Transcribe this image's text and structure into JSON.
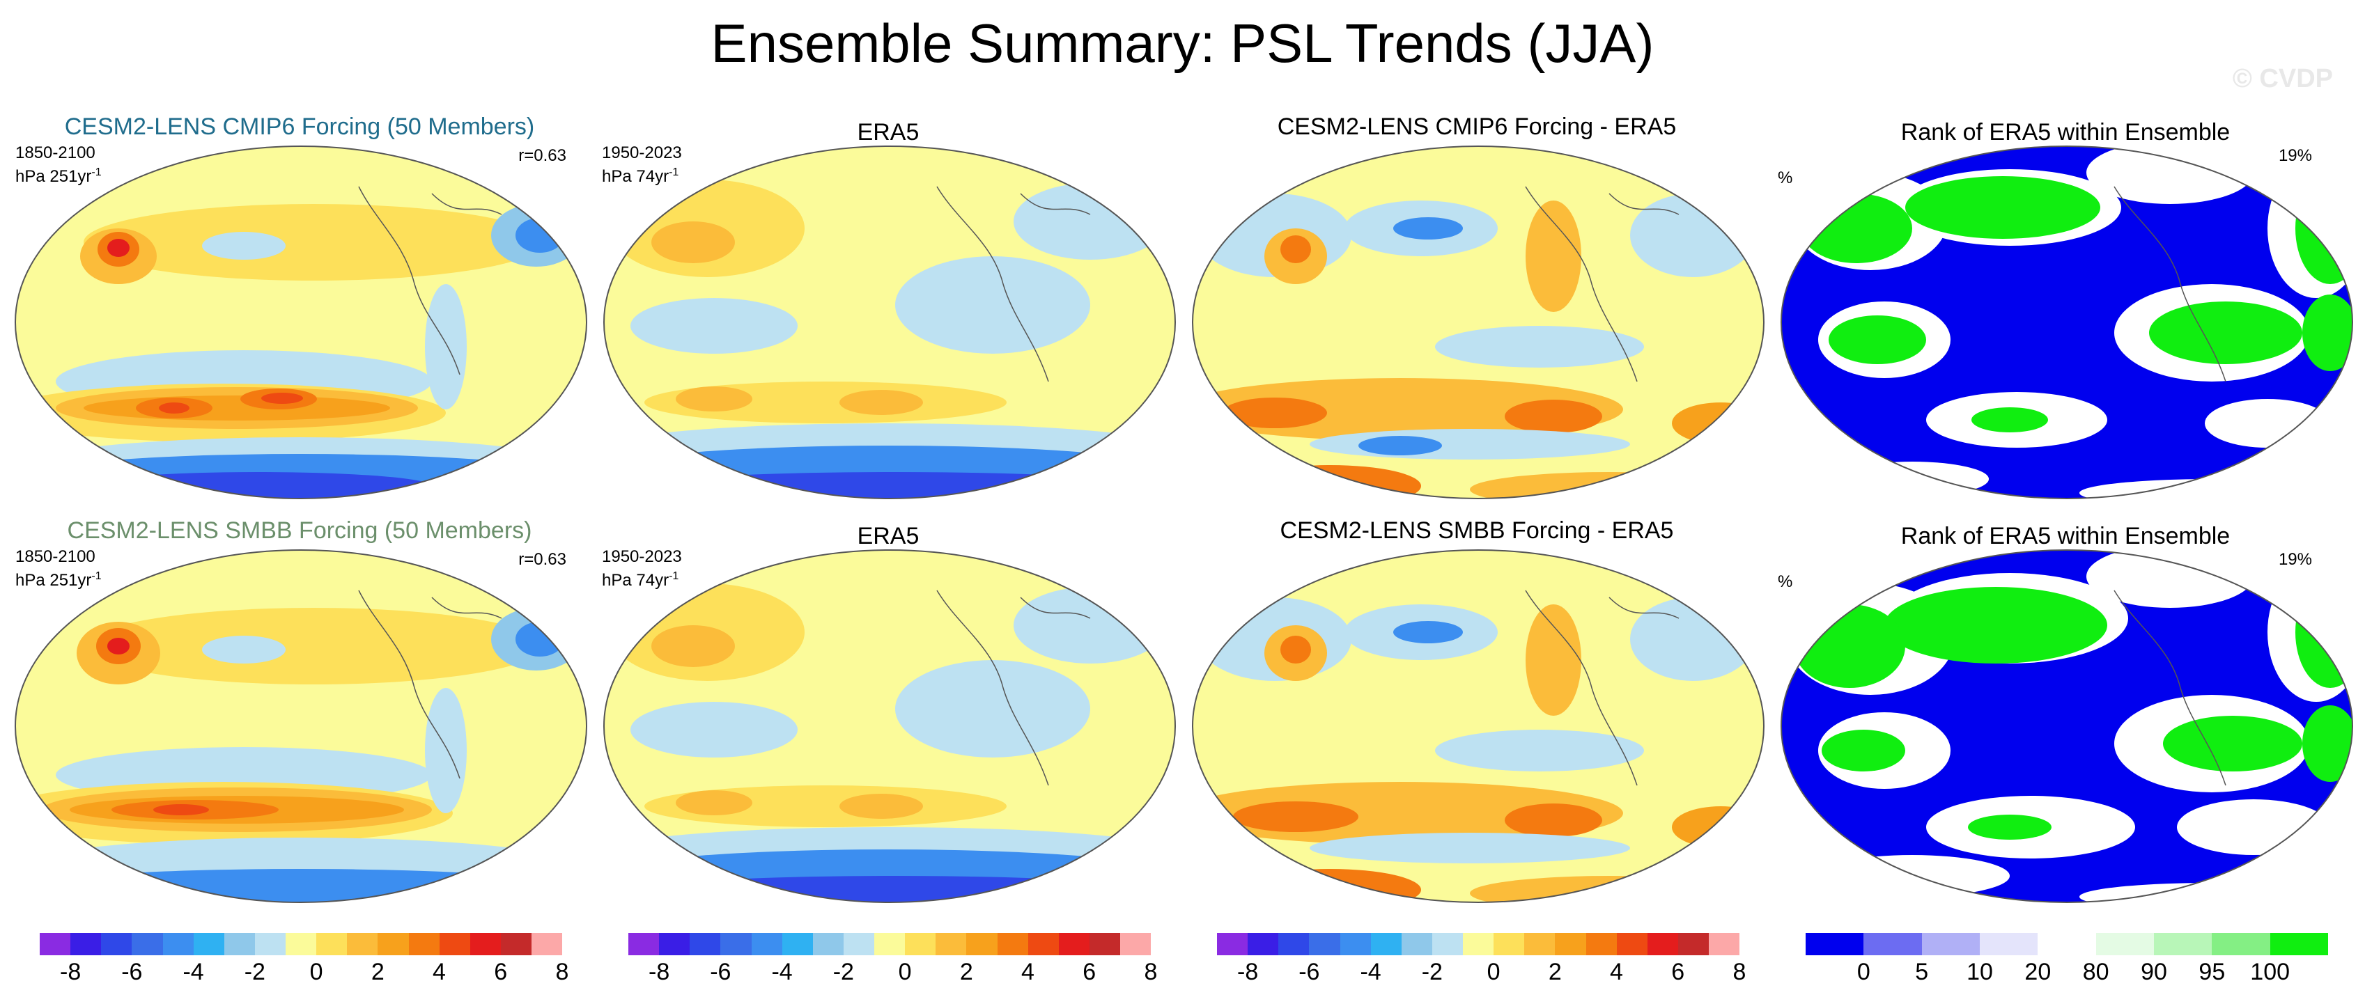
{
  "figure": {
    "title": "Ensemble Summary: PSL Trends (JJA)",
    "watermark": "© CVDP"
  },
  "rows": [
    {
      "model_title": "CESM2-LENS CMIP6 Forcing (50 Members)",
      "model_title_color": "#1f6c8c",
      "model_period": "1850-2100",
      "model_units": "hPa 251yr",
      "units_exponent": "-1",
      "pattern_correlation": "r=0.63"
    },
    {
      "model_title": "CESM2-LENS SMBB Forcing (50 Members)",
      "model_title_color": "#6b8f6b",
      "model_period": "1850-2100",
      "model_units": "hPa 251yr",
      "units_exponent": "-1",
      "pattern_correlation": "r=0.63"
    }
  ],
  "obs": {
    "title": "ERA5",
    "period": "1950-2023",
    "units": "hPa 74yr",
    "units_exponent": "-1"
  },
  "difference_titles": [
    "CESM2-LENS CMIP6 Forcing - ERA5",
    "CESM2-LENS SMBB Forcing - ERA5"
  ],
  "rank": {
    "title": "Rank of ERA5 within Ensemble",
    "units": "%",
    "area_percent": [
      "19%",
      "19%"
    ]
  },
  "colorbars": {
    "trend": {
      "colors": [
        "#8a2be2",
        "#3a1ee6",
        "#2f48e8",
        "#3a6ee8",
        "#3c8ef0",
        "#2fb1f2",
        "#8fc8ea",
        "#bde1f2",
        "#fbfb9a",
        "#fde05a",
        "#fbbc3a",
        "#f7a11c",
        "#f47a10",
        "#ee4a12",
        "#e41d1d",
        "#c42a2a",
        "#fca8a8"
      ],
      "tick_labels": [
        "-8",
        "-6",
        "-4",
        "-2",
        "0",
        "2",
        "4",
        "6",
        "8"
      ]
    },
    "rank": {
      "colors": [
        "#0000ee",
        "#6c6cf2",
        "#b0b0f6",
        "#e4e4fb",
        "#ffffff",
        "#e4fbe4",
        "#b8f6b8",
        "#84ef84",
        "#10ee10"
      ],
      "tick_labels": [
        "0",
        "5",
        "10",
        "20",
        "80",
        "90",
        "95",
        "100"
      ]
    }
  },
  "legend_colors": {
    "yellow": "#fbfb9a",
    "light_blue": "#bde1f2",
    "orange": "#fbbc3a",
    "blue": "#3c8ef0",
    "rank_blue": "#0000ee",
    "rank_green": "#10ee10"
  }
}
